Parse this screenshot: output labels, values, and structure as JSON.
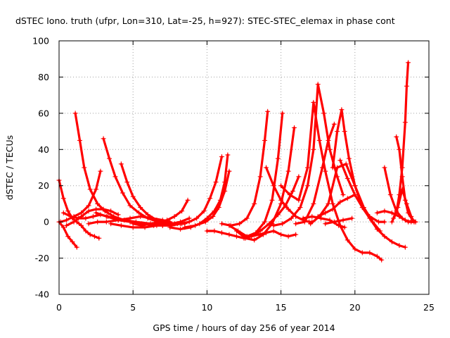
{
  "chart_data": {
    "type": "scatter",
    "title": "dSTEC Iono. truth (ufpr, Lon=310, Lat=-25, h=927): STEC-STEC_elemax in phase cont",
    "xlabel": "GPS time / hours of day 256 of year 2014",
    "ylabel": "dSTEC  / TECUs",
    "xlim": [
      0,
      25
    ],
    "ylim": [
      -40,
      100
    ],
    "xticks": [
      "0",
      "5",
      "10",
      "15",
      "20",
      "25"
    ],
    "yticks": [
      "-40",
      "-20",
      "0",
      "20",
      "40",
      "60",
      "80",
      "100"
    ],
    "grid": true,
    "marker": "plus",
    "series_color": "#ff0000",
    "series": [
      {
        "x": [
          0.0,
          0.3,
          0.6,
          0.9,
          1.2,
          1.5,
          1.8,
          2.1,
          2.4,
          2.7
        ],
        "y": [
          23,
          13,
          6,
          2,
          0,
          -2,
          -5,
          -7,
          -8,
          -9
        ]
      },
      {
        "x": [
          0.0,
          0.3,
          0.6,
          0.9,
          1.2
        ],
        "y": [
          0,
          -3,
          -8,
          -11,
          -14
        ]
      },
      {
        "x": [
          0.1,
          0.5,
          1.0,
          1.5,
          2.0,
          2.5,
          2.8
        ],
        "y": [
          0,
          1,
          3,
          5,
          9,
          18,
          28
        ]
      },
      {
        "x": [
          0.3,
          0.8,
          1.3,
          1.8,
          2.3,
          2.8,
          3.3,
          3.8
        ],
        "y": [
          5,
          3,
          2,
          2,
          3,
          4,
          3,
          2
        ]
      },
      {
        "x": [
          1.1,
          1.4,
          1.7,
          2.1,
          2.6,
          3.1,
          3.7,
          4.4,
          5.2,
          6.2,
          7.2
        ],
        "y": [
          60,
          45,
          30,
          18,
          10,
          6,
          3,
          1,
          0,
          -1,
          -1
        ]
      },
      {
        "x": [
          2.0,
          2.6,
          3.2,
          4.0,
          4.8,
          5.5,
          6.3,
          7.0,
          7.5
        ],
        "y": [
          -1,
          0,
          0,
          1,
          2,
          3,
          2,
          1,
          0
        ]
      },
      {
        "x": [
          0.5,
          1.0,
          1.5,
          2.0,
          2.5,
          3.0,
          3.5,
          4.0
        ],
        "y": [
          -2,
          0,
          3,
          6,
          7,
          7,
          6,
          4
        ]
      },
      {
        "x": [
          3.0,
          3.4,
          3.8,
          4.3,
          4.8,
          5.4,
          6.0,
          6.7,
          7.4,
          8.0,
          8.5
        ],
        "y": [
          46,
          35,
          25,
          16,
          9,
          5,
          2,
          0,
          -1,
          -1,
          -1
        ]
      },
      {
        "x": [
          4.2,
          4.6,
          5.0,
          5.5,
          6.0,
          6.6,
          7.2,
          7.8,
          8.3
        ],
        "y": [
          32,
          22,
          14,
          8,
          4,
          1,
          0,
          -1,
          -1
        ]
      },
      {
        "x": [
          2.5,
          3.2,
          4.0,
          4.8,
          5.6,
          6.4,
          7.0,
          7.6,
          8.2,
          8.8
        ],
        "y": [
          5,
          3,
          1,
          0,
          -1,
          -2,
          -2,
          -1,
          0,
          2
        ]
      },
      {
        "x": [
          5.0,
          5.6,
          6.2,
          6.8,
          7.3,
          7.8,
          8.3,
          8.7
        ],
        "y": [
          -1,
          -2,
          -1,
          0,
          1,
          3,
          6,
          12
        ]
      },
      {
        "x": [
          3.5,
          4.2,
          5.0,
          5.8,
          6.6,
          7.3
        ],
        "y": [
          -1,
          -2,
          -3,
          -3,
          -2,
          -1
        ]
      },
      {
        "x": [
          7.0,
          7.6,
          8.2,
          8.8,
          9.3,
          9.8,
          10.2,
          10.6,
          11.0
        ],
        "y": [
          -2,
          -2,
          -1,
          0,
          2,
          6,
          13,
          22,
          36
        ]
      },
      {
        "x": [
          7.5,
          8.2,
          8.9,
          9.5,
          10.0,
          10.5,
          10.9,
          11.2,
          11.4
        ],
        "y": [
          -3,
          -4,
          -3,
          -1,
          2,
          6,
          12,
          22,
          37
        ]
      },
      {
        "x": [
          8.5,
          9.2,
          9.9,
          10.4,
          10.8,
          11.2,
          11.5
        ],
        "y": [
          -3,
          -2,
          0,
          3,
          8,
          17,
          28
        ]
      },
      {
        "x": [
          10.0,
          10.5,
          11.0,
          11.5,
          12.0,
          12.5,
          13.0,
          13.5,
          14.0,
          14.5,
          15.0,
          15.5,
          16.0
        ],
        "y": [
          -5,
          -5,
          -6,
          -7,
          -8,
          -9,
          -8,
          -7,
          -6,
          -5,
          -7,
          -8,
          -7
        ]
      },
      {
        "x": [
          11.0,
          11.6,
          12.2,
          12.7,
          13.2,
          13.6,
          13.9,
          14.1
        ],
        "y": [
          -1,
          -2,
          -1,
          2,
          10,
          25,
          45,
          61
        ]
      },
      {
        "x": [
          11.5,
          12.1,
          12.7,
          13.3,
          13.9,
          14.4,
          14.8,
          15.1
        ],
        "y": [
          -2,
          -5,
          -8,
          -6,
          0,
          12,
          35,
          60
        ]
      },
      {
        "x": [
          12.0,
          12.6,
          13.2,
          13.8,
          14.4,
          15.0,
          15.5,
          15.9
        ],
        "y": [
          -5,
          -9,
          -10,
          -7,
          -1,
          10,
          28,
          52
        ]
      },
      {
        "x": [
          13.0,
          13.6,
          14.2,
          14.8,
          15.3,
          15.8,
          16.2
        ],
        "y": [
          -8,
          -5,
          -1,
          4,
          9,
          17,
          25
        ]
      },
      {
        "x": [
          14.0,
          14.5,
          15.0,
          15.5,
          16.0,
          16.5,
          16.9,
          17.1
        ],
        "y": [
          30,
          20,
          12,
          7,
          3,
          1,
          0,
          0
        ]
      },
      {
        "x": [
          14.5,
          15.1,
          15.7,
          16.3,
          16.8,
          17.2,
          17.5,
          17.9,
          18.3,
          18.8,
          19.2
        ],
        "y": [
          -2,
          -1,
          2,
          8,
          20,
          40,
          76,
          60,
          40,
          25,
          15
        ]
      },
      {
        "x": [
          15.0,
          15.6,
          16.2,
          16.8,
          17.2,
          17.6,
          18.0,
          18.5,
          19.0,
          19.5,
          20.0,
          20.5,
          21.0,
          21.5,
          21.8
        ],
        "y": [
          20,
          15,
          12,
          30,
          66,
          45,
          28,
          10,
          -2,
          -10,
          -15,
          -17,
          -17,
          -19,
          -21
        ]
      },
      {
        "x": [
          16.0,
          16.6,
          17.2,
          17.8,
          18.2,
          18.6
        ],
        "y": [
          -1,
          0,
          10,
          30,
          45,
          54
        ]
      },
      {
        "x": [
          16.5,
          17.1,
          17.7,
          18.3,
          18.9,
          19.3
        ],
        "y": [
          2,
          3,
          2,
          1,
          -2,
          -3
        ]
      },
      {
        "x": [
          17.0,
          17.6,
          18.2,
          18.8,
          19.4,
          20.0,
          20.6,
          21.2,
          21.7
        ],
        "y": [
          -1,
          3,
          10,
          30,
          32,
          20,
          8,
          0,
          -5
        ]
      },
      {
        "x": [
          17.5,
          18.0,
          18.5,
          19.0,
          19.5,
          20.0
        ],
        "y": [
          3,
          5,
          7,
          11,
          13,
          15
        ]
      },
      {
        "x": [
          18.5,
          18.8,
          19.1,
          19.3,
          19.6,
          20.0,
          20.5,
          21.0,
          21.5,
          22.0,
          22.5,
          23.0,
          23.4
        ],
        "y": [
          30,
          50,
          62,
          50,
          35,
          20,
          8,
          2,
          -4,
          -8,
          -11,
          -13,
          -14
        ]
      },
      {
        "x": [
          19.0,
          19.5,
          20.0,
          20.5,
          21.0,
          21.6,
          22.0
        ],
        "y": [
          34,
          24,
          15,
          8,
          3,
          0,
          0
        ]
      },
      {
        "x": [
          18.0,
          18.6,
          19.2,
          19.8
        ],
        "y": [
          -1,
          0,
          1,
          2
        ]
      },
      {
        "x": [
          21.5,
          22.0,
          22.5,
          23.0,
          23.4,
          23.8,
          24.1
        ],
        "y": [
          5,
          6,
          5,
          3,
          1,
          0,
          0
        ]
      },
      {
        "x": [
          22.0,
          22.4,
          22.8,
          23.2,
          23.6,
          24.0
        ],
        "y": [
          30,
          15,
          6,
          2,
          0,
          0
        ]
      },
      {
        "x": [
          22.8,
          23.0,
          23.2,
          23.4,
          23.6,
          23.9,
          24.1
        ],
        "y": [
          47,
          40,
          25,
          12,
          5,
          1,
          0
        ]
      },
      {
        "x": [
          22.5,
          22.8,
          23.0,
          23.2,
          23.4,
          23.5,
          23.6
        ],
        "y": [
          0,
          5,
          15,
          30,
          55,
          75,
          88
        ]
      },
      {
        "x": [
          22.6,
          22.9,
          23.2,
          23.5,
          23.8,
          24.0
        ],
        "y": [
          2,
          8,
          18,
          10,
          3,
          0
        ]
      }
    ]
  }
}
